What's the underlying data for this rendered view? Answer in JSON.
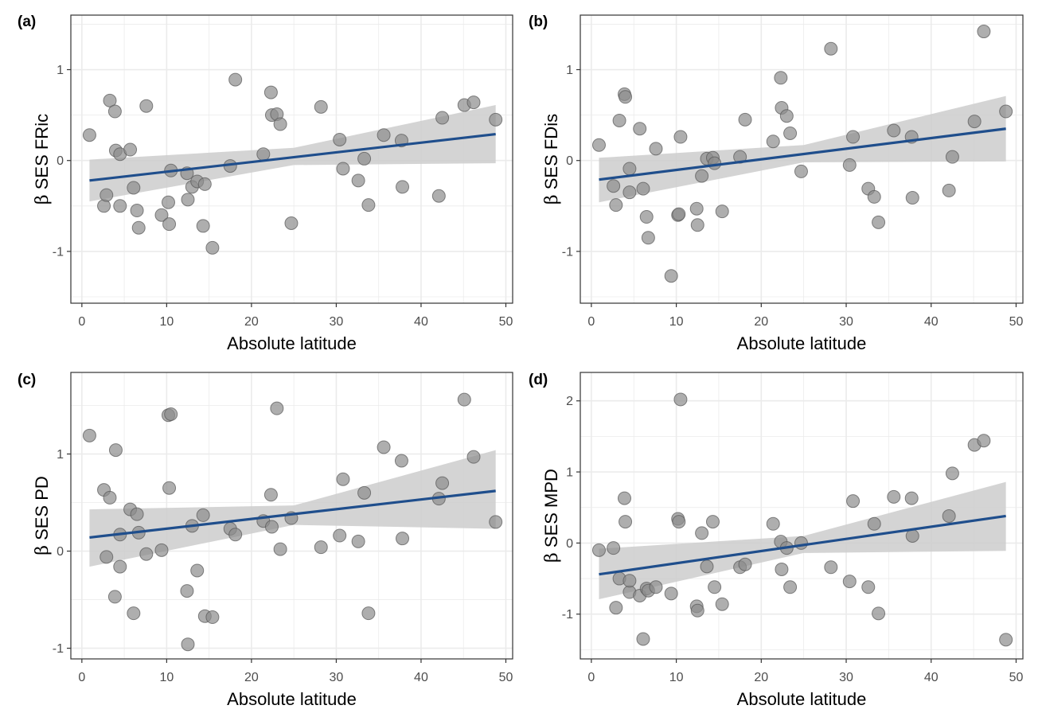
{
  "colors": {
    "point_fill": "#8c8c8c",
    "point_stroke": "#555555",
    "trend_line": "#1f4e8c",
    "ci_band": "#cccccc",
    "grid": "#ebebeb",
    "panel_border": "#333333"
  },
  "chart_data": [
    {
      "type": "scatter",
      "panel_label": "(a)",
      "xlabel": "Absolute latitude",
      "ylabel_symbol": "β",
      "ylabel_text": " SES FRic",
      "xlim": [
        -1.3,
        50.8
      ],
      "ylim": [
        -1.57,
        1.6
      ],
      "x_ticks": [
        {
          "v": 0,
          "label": "0"
        },
        {
          "v": 10,
          "label": "10"
        },
        {
          "v": 20,
          "label": "20"
        },
        {
          "v": 30,
          "label": "30"
        },
        {
          "v": 40,
          "label": "40"
        },
        {
          "v": 50,
          "label": "50"
        }
      ],
      "y_ticks": [
        {
          "v": -1,
          "label": "-1"
        },
        {
          "v": 0,
          "label": "0"
        },
        {
          "v": 1,
          "label": "1"
        }
      ],
      "trend": {
        "x0": 0.9,
        "y0": -0.22,
        "x1": 48.8,
        "y1": 0.29
      },
      "ci": [
        {
          "x": 0.9,
          "lo": -0.45,
          "hi": 0.01
        },
        {
          "x": 25,
          "lo": -0.05,
          "hi": 0.14
        },
        {
          "x": 48.8,
          "lo": -0.03,
          "hi": 0.61
        }
      ],
      "points": [
        {
          "x": 0.9,
          "y": 0.28
        },
        {
          "x": 2.6,
          "y": -0.5
        },
        {
          "x": 2.9,
          "y": -0.38
        },
        {
          "x": 3.3,
          "y": 0.66
        },
        {
          "x": 3.9,
          "y": 0.54
        },
        {
          "x": 4.0,
          "y": 0.11
        },
        {
          "x": 4.5,
          "y": 0.07
        },
        {
          "x": 4.5,
          "y": -0.5
        },
        {
          "x": 5.7,
          "y": 0.12
        },
        {
          "x": 6.1,
          "y": -0.3
        },
        {
          "x": 6.5,
          "y": -0.55
        },
        {
          "x": 6.7,
          "y": -0.74
        },
        {
          "x": 7.6,
          "y": 0.6
        },
        {
          "x": 9.4,
          "y": -0.6
        },
        {
          "x": 10.2,
          "y": -0.46
        },
        {
          "x": 10.3,
          "y": -0.7
        },
        {
          "x": 10.5,
          "y": -0.11
        },
        {
          "x": 12.4,
          "y": -0.14
        },
        {
          "x": 12.5,
          "y": -0.43
        },
        {
          "x": 13.0,
          "y": -0.29
        },
        {
          "x": 13.6,
          "y": -0.23
        },
        {
          "x": 14.3,
          "y": -0.72
        },
        {
          "x": 14.5,
          "y": -0.26
        },
        {
          "x": 15.4,
          "y": -0.96
        },
        {
          "x": 17.5,
          "y": -0.06
        },
        {
          "x": 18.1,
          "y": 0.89
        },
        {
          "x": 21.4,
          "y": 0.07
        },
        {
          "x": 22.3,
          "y": 0.75
        },
        {
          "x": 22.4,
          "y": 0.5
        },
        {
          "x": 23.0,
          "y": 0.51
        },
        {
          "x": 23.4,
          "y": 0.4
        },
        {
          "x": 24.7,
          "y": -0.69
        },
        {
          "x": 28.2,
          "y": 0.59
        },
        {
          "x": 30.4,
          "y": 0.23
        },
        {
          "x": 30.8,
          "y": -0.09
        },
        {
          "x": 32.6,
          "y": -0.22
        },
        {
          "x": 33.3,
          "y": 0.02
        },
        {
          "x": 33.8,
          "y": -0.49
        },
        {
          "x": 35.6,
          "y": 0.28
        },
        {
          "x": 37.7,
          "y": 0.22
        },
        {
          "x": 37.8,
          "y": -0.29
        },
        {
          "x": 42.1,
          "y": -0.39
        },
        {
          "x": 42.5,
          "y": 0.47
        },
        {
          "x": 45.1,
          "y": 0.61
        },
        {
          "x": 46.2,
          "y": 0.64
        },
        {
          "x": 48.8,
          "y": 0.45
        }
      ]
    },
    {
      "type": "scatter",
      "panel_label": "(b)",
      "xlabel": "Absolute latitude",
      "ylabel_symbol": "β",
      "ylabel_text": " SES FDis",
      "xlim": [
        -1.3,
        50.8
      ],
      "ylim": [
        -1.57,
        1.6
      ],
      "x_ticks": [
        {
          "v": 0,
          "label": "0"
        },
        {
          "v": 10,
          "label": "10"
        },
        {
          "v": 20,
          "label": "20"
        },
        {
          "v": 30,
          "label": "30"
        },
        {
          "v": 40,
          "label": "40"
        },
        {
          "v": 50,
          "label": "50"
        }
      ],
      "y_ticks": [
        {
          "v": -1,
          "label": "-1"
        },
        {
          "v": 0,
          "label": "0"
        },
        {
          "v": 1,
          "label": "1"
        }
      ],
      "trend": {
        "x0": 0.9,
        "y0": -0.21,
        "x1": 48.8,
        "y1": 0.35
      },
      "ci": [
        {
          "x": 0.9,
          "lo": -0.46,
          "hi": 0.03
        },
        {
          "x": 25,
          "lo": -0.02,
          "hi": 0.17
        },
        {
          "x": 48.8,
          "lo": -0.01,
          "hi": 0.71
        }
      ],
      "points": [
        {
          "x": 0.9,
          "y": 0.17
        },
        {
          "x": 2.6,
          "y": -0.28
        },
        {
          "x": 2.9,
          "y": -0.49
        },
        {
          "x": 3.3,
          "y": 0.44
        },
        {
          "x": 3.9,
          "y": 0.73
        },
        {
          "x": 4.0,
          "y": 0.7
        },
        {
          "x": 4.5,
          "y": -0.09
        },
        {
          "x": 4.5,
          "y": -0.35
        },
        {
          "x": 5.7,
          "y": 0.35
        },
        {
          "x": 6.1,
          "y": -0.31
        },
        {
          "x": 6.5,
          "y": -0.62
        },
        {
          "x": 6.7,
          "y": -0.85
        },
        {
          "x": 7.6,
          "y": 0.13
        },
        {
          "x": 9.4,
          "y": -1.27
        },
        {
          "x": 10.2,
          "y": -0.6
        },
        {
          "x": 10.3,
          "y": -0.59
        },
        {
          "x": 10.5,
          "y": 0.26
        },
        {
          "x": 12.4,
          "y": -0.53
        },
        {
          "x": 12.5,
          "y": -0.71
        },
        {
          "x": 13.0,
          "y": -0.17
        },
        {
          "x": 13.6,
          "y": 0.02
        },
        {
          "x": 14.3,
          "y": 0.03
        },
        {
          "x": 14.5,
          "y": -0.03
        },
        {
          "x": 15.4,
          "y": -0.56
        },
        {
          "x": 17.5,
          "y": 0.04
        },
        {
          "x": 18.1,
          "y": 0.45
        },
        {
          "x": 21.4,
          "y": 0.21
        },
        {
          "x": 22.3,
          "y": 0.91
        },
        {
          "x": 22.4,
          "y": 0.58
        },
        {
          "x": 23.0,
          "y": 0.49
        },
        {
          "x": 23.4,
          "y": 0.3
        },
        {
          "x": 24.7,
          "y": -0.12
        },
        {
          "x": 28.2,
          "y": 1.23
        },
        {
          "x": 30.4,
          "y": -0.05
        },
        {
          "x": 30.8,
          "y": 0.26
        },
        {
          "x": 32.6,
          "y": -0.31
        },
        {
          "x": 33.3,
          "y": -0.4
        },
        {
          "x": 33.8,
          "y": -0.68
        },
        {
          "x": 35.6,
          "y": 0.33
        },
        {
          "x": 37.7,
          "y": 0.26
        },
        {
          "x": 37.8,
          "y": -0.41
        },
        {
          "x": 42.1,
          "y": -0.33
        },
        {
          "x": 42.5,
          "y": 0.04
        },
        {
          "x": 45.1,
          "y": 0.43
        },
        {
          "x": 46.2,
          "y": 1.42
        },
        {
          "x": 48.8,
          "y": 0.54
        }
      ]
    },
    {
      "type": "scatter",
      "panel_label": "(c)",
      "xlabel": "Absolute latitude",
      "ylabel_symbol": "β",
      "ylabel_text": " SES PD",
      "xlim": [
        -1.3,
        50.8
      ],
      "ylim": [
        -1.11,
        1.84
      ],
      "x_ticks": [
        {
          "v": 0,
          "label": "0"
        },
        {
          "v": 10,
          "label": "10"
        },
        {
          "v": 20,
          "label": "20"
        },
        {
          "v": 30,
          "label": "30"
        },
        {
          "v": 40,
          "label": "40"
        },
        {
          "v": 50,
          "label": "50"
        }
      ],
      "y_ticks": [
        {
          "v": -1,
          "label": "-1"
        },
        {
          "v": 0,
          "label": "0"
        },
        {
          "v": 1,
          "label": "1"
        }
      ],
      "trend": {
        "x0": 0.9,
        "y0": 0.14,
        "x1": 48.8,
        "y1": 0.62
      },
      "ci": [
        {
          "x": 0.9,
          "lo": -0.16,
          "hi": 0.43
        },
        {
          "x": 25,
          "lo": 0.27,
          "hi": 0.47
        },
        {
          "x": 48.8,
          "lo": 0.23,
          "hi": 1.04
        }
      ],
      "points": [
        {
          "x": 0.9,
          "y": 1.19
        },
        {
          "x": 2.6,
          "y": 0.63
        },
        {
          "x": 2.9,
          "y": -0.06
        },
        {
          "x": 3.3,
          "y": 0.55
        },
        {
          "x": 3.9,
          "y": -0.47
        },
        {
          "x": 4.0,
          "y": 1.04
        },
        {
          "x": 4.5,
          "y": 0.17
        },
        {
          "x": 4.5,
          "y": -0.16
        },
        {
          "x": 5.7,
          "y": 0.43
        },
        {
          "x": 6.1,
          "y": -0.64
        },
        {
          "x": 6.5,
          "y": 0.38
        },
        {
          "x": 6.7,
          "y": 0.19
        },
        {
          "x": 7.6,
          "y": -0.03
        },
        {
          "x": 9.4,
          "y": 0.01
        },
        {
          "x": 10.2,
          "y": 1.4
        },
        {
          "x": 10.3,
          "y": 0.65
        },
        {
          "x": 10.5,
          "y": 1.41
        },
        {
          "x": 12.4,
          "y": -0.41
        },
        {
          "x": 12.5,
          "y": -0.96
        },
        {
          "x": 13.0,
          "y": 0.26
        },
        {
          "x": 13.6,
          "y": -0.2
        },
        {
          "x": 14.3,
          "y": 0.37
        },
        {
          "x": 14.5,
          "y": -0.67
        },
        {
          "x": 15.4,
          "y": -0.68
        },
        {
          "x": 17.5,
          "y": 0.23
        },
        {
          "x": 18.1,
          "y": 0.17
        },
        {
          "x": 21.4,
          "y": 0.31
        },
        {
          "x": 22.3,
          "y": 0.58
        },
        {
          "x": 22.4,
          "y": 0.25
        },
        {
          "x": 23.0,
          "y": 1.47
        },
        {
          "x": 23.4,
          "y": 0.02
        },
        {
          "x": 24.7,
          "y": 0.34
        },
        {
          "x": 28.2,
          "y": 0.04
        },
        {
          "x": 30.4,
          "y": 0.16
        },
        {
          "x": 30.8,
          "y": 0.74
        },
        {
          "x": 32.6,
          "y": 0.1
        },
        {
          "x": 33.3,
          "y": 0.6
        },
        {
          "x": 33.8,
          "y": -0.64
        },
        {
          "x": 35.6,
          "y": 1.07
        },
        {
          "x": 37.7,
          "y": 0.93
        },
        {
          "x": 37.8,
          "y": 0.13
        },
        {
          "x": 42.1,
          "y": 0.54
        },
        {
          "x": 42.5,
          "y": 0.7
        },
        {
          "x": 45.1,
          "y": 1.56
        },
        {
          "x": 46.2,
          "y": 0.97
        },
        {
          "x": 48.8,
          "y": 0.3
        }
      ]
    },
    {
      "type": "scatter",
      "panel_label": "(d)",
      "xlabel": "Absolute latitude",
      "ylabel_symbol": "β",
      "ylabel_text": " SES MPD",
      "xlim": [
        -1.3,
        50.8
      ],
      "ylim": [
        -1.63,
        2.4
      ],
      "x_ticks": [
        {
          "v": 0,
          "label": "0"
        },
        {
          "v": 10,
          "label": "10"
        },
        {
          "v": 20,
          "label": "20"
        },
        {
          "v": 30,
          "label": "30"
        },
        {
          "v": 40,
          "label": "40"
        },
        {
          "v": 50,
          "label": "50"
        }
      ],
      "y_ticks": [
        {
          "v": -1,
          "label": "-1"
        },
        {
          "v": 0,
          "label": "0"
        },
        {
          "v": 1,
          "label": "1"
        },
        {
          "v": 2,
          "label": "2"
        }
      ],
      "trend": {
        "x0": 0.9,
        "y0": -0.44,
        "x1": 48.8,
        "y1": 0.38
      },
      "ci": [
        {
          "x": 0.9,
          "lo": -0.79,
          "hi": -0.08
        },
        {
          "x": 25,
          "lo": -0.14,
          "hi": 0.1
        },
        {
          "x": 48.8,
          "lo": -0.11,
          "hi": 0.86
        }
      ],
      "points": [
        {
          "x": 0.9,
          "y": -0.1
        },
        {
          "x": 2.6,
          "y": -0.07
        },
        {
          "x": 2.9,
          "y": -0.91
        },
        {
          "x": 3.3,
          "y": -0.5
        },
        {
          "x": 3.9,
          "y": 0.63
        },
        {
          "x": 4.0,
          "y": 0.3
        },
        {
          "x": 4.5,
          "y": -0.69
        },
        {
          "x": 4.5,
          "y": -0.53
        },
        {
          "x": 5.7,
          "y": -0.74
        },
        {
          "x": 6.1,
          "y": -1.35
        },
        {
          "x": 6.5,
          "y": -0.64
        },
        {
          "x": 6.7,
          "y": -0.67
        },
        {
          "x": 7.6,
          "y": -0.62
        },
        {
          "x": 9.4,
          "y": -0.71
        },
        {
          "x": 10.2,
          "y": 0.34
        },
        {
          "x": 10.3,
          "y": 0.3
        },
        {
          "x": 10.5,
          "y": 2.02
        },
        {
          "x": 12.4,
          "y": -0.89
        },
        {
          "x": 12.5,
          "y": -0.95
        },
        {
          "x": 13.0,
          "y": 0.14
        },
        {
          "x": 13.6,
          "y": -0.33
        },
        {
          "x": 14.3,
          "y": 0.3
        },
        {
          "x": 14.5,
          "y": -0.62
        },
        {
          "x": 15.4,
          "y": -0.86
        },
        {
          "x": 17.5,
          "y": -0.34
        },
        {
          "x": 18.1,
          "y": -0.3
        },
        {
          "x": 21.4,
          "y": 0.27
        },
        {
          "x": 22.3,
          "y": 0.02
        },
        {
          "x": 22.4,
          "y": -0.37
        },
        {
          "x": 23.0,
          "y": -0.07
        },
        {
          "x": 23.4,
          "y": -0.62
        },
        {
          "x": 24.7,
          "y": 0.0
        },
        {
          "x": 28.2,
          "y": -0.34
        },
        {
          "x": 30.4,
          "y": -0.54
        },
        {
          "x": 30.8,
          "y": 0.59
        },
        {
          "x": 32.6,
          "y": -0.62
        },
        {
          "x": 33.3,
          "y": 0.27
        },
        {
          "x": 33.8,
          "y": -0.99
        },
        {
          "x": 35.6,
          "y": 0.65
        },
        {
          "x": 37.7,
          "y": 0.63
        },
        {
          "x": 37.8,
          "y": 0.1
        },
        {
          "x": 42.1,
          "y": 0.38
        },
        {
          "x": 42.5,
          "y": 0.98
        },
        {
          "x": 45.1,
          "y": 1.38
        },
        {
          "x": 46.2,
          "y": 1.44
        },
        {
          "x": 48.8,
          "y": -1.36
        }
      ]
    }
  ]
}
